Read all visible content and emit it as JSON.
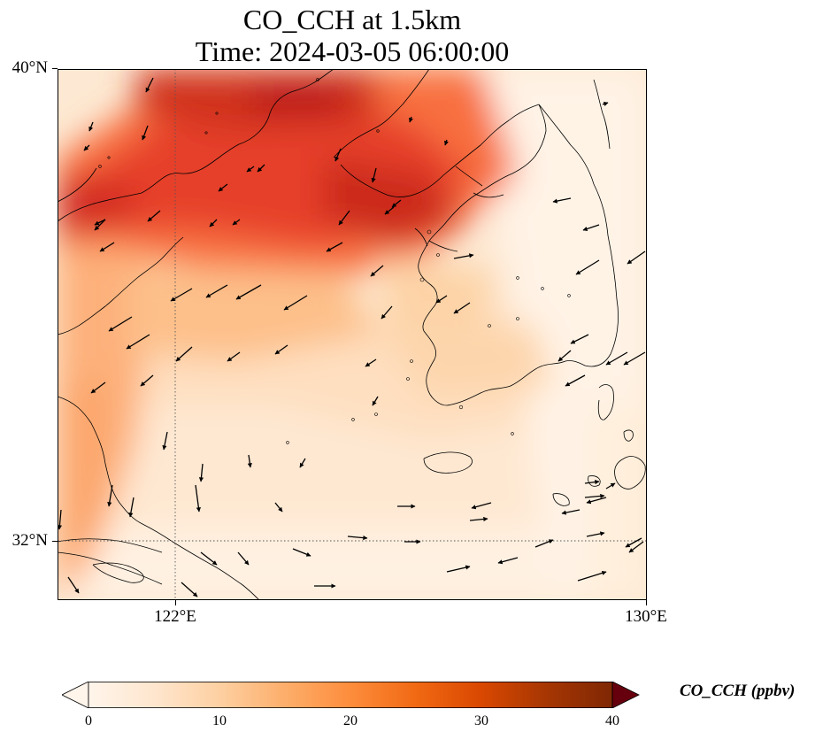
{
  "title_line1": "CO_CCH at 1.5km",
  "title_line2": "Time: 2024-03-05 06:00:00",
  "map": {
    "lon_range": [
      120.2,
      130.0
    ],
    "lat_range": [
      31.0,
      40.0
    ],
    "lat_labels": [
      "40°N",
      "32°N"
    ],
    "lon_labels": [
      "122°E",
      "130°E"
    ],
    "gridline_lon": 122,
    "gridline_lat": 32
  },
  "colorbar": {
    "title": "CO_CCH (ppbv)",
    "ticks": [
      "0",
      "10",
      "20",
      "30",
      "40"
    ],
    "min": 0,
    "max": 40,
    "colormap": [
      "#fff5eb",
      "#fee6ce",
      "#fdd0a2",
      "#fdae6b",
      "#fd8d3c",
      "#f16913",
      "#d94801",
      "#a63603",
      "#7f2704"
    ],
    "under_color": "#ffffff",
    "over_color": "#67000d"
  },
  "wind_vectors_present": true
}
